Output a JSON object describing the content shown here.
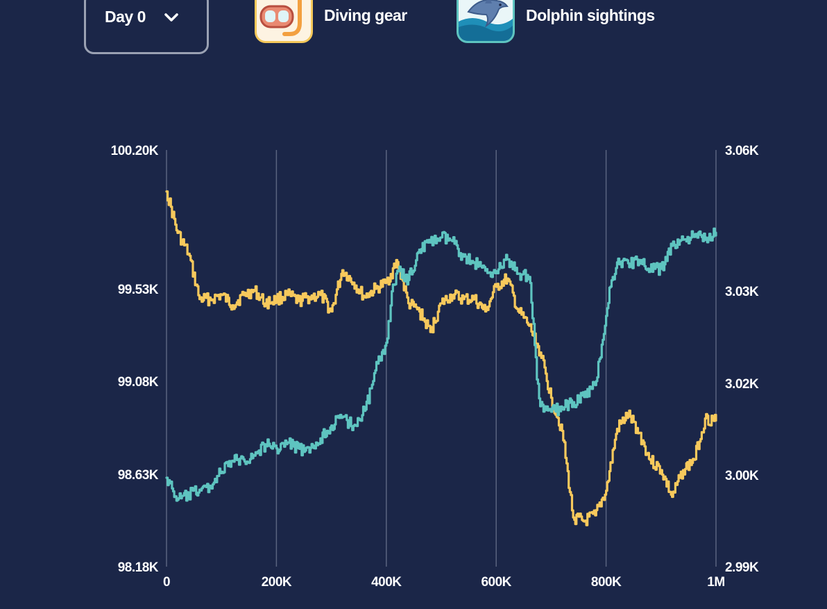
{
  "controls": {
    "day_label": "Day 0",
    "day_icon": "chevron-down-icon"
  },
  "legend": [
    {
      "label": "Diving gear",
      "icon": "snorkel-mask-icon",
      "color": "#f7c95c"
    },
    {
      "label": "Dolphin sightings",
      "icon": "dolphin-icon",
      "color": "#5ec4c0"
    }
  ],
  "chart_data": {
    "type": "line",
    "grid": {
      "vertical": true,
      "horizontal": false
    },
    "x_axis": {
      "range": [
        0,
        1000000
      ],
      "ticks": [
        0,
        200000,
        400000,
        600000,
        800000,
        1000000
      ],
      "tick_labels": [
        "0",
        "200K",
        "400K",
        "600K",
        "800K",
        "1M"
      ]
    },
    "y_left": {
      "range": [
        98180,
        100200
      ],
      "ticks": [
        98180,
        98630,
        99080,
        99530,
        100200
      ],
      "tick_labels": [
        "98.18K",
        "98.63K",
        "99.08K",
        "99.53K",
        "100.20K"
      ]
    },
    "y_right": {
      "range": [
        2990,
        3060
      ],
      "ticks": [
        2990,
        3000,
        3020,
        3030,
        3060
      ],
      "tick_labels": [
        "2.99K",
        "3.00K",
        "3.02K",
        "3.03K",
        "3.06K"
      ]
    },
    "series": [
      {
        "name": "Diving gear",
        "axis": "left",
        "color": "#f7c95c",
        "points": [
          [
            0,
            100000
          ],
          [
            20000,
            99800
          ],
          [
            40000,
            99700
          ],
          [
            60000,
            99480
          ],
          [
            80000,
            99480
          ],
          [
            100000,
            99500
          ],
          [
            120000,
            99450
          ],
          [
            140000,
            99500
          ],
          [
            160000,
            99520
          ],
          [
            180000,
            99460
          ],
          [
            200000,
            99480
          ],
          [
            220000,
            99500
          ],
          [
            240000,
            99470
          ],
          [
            260000,
            99490
          ],
          [
            280000,
            99500
          ],
          [
            300000,
            99420
          ],
          [
            320000,
            99620
          ],
          [
            340000,
            99560
          ],
          [
            360000,
            99490
          ],
          [
            380000,
            99530
          ],
          [
            400000,
            99560
          ],
          [
            420000,
            99660
          ],
          [
            440000,
            99460
          ],
          [
            460000,
            99420
          ],
          [
            480000,
            99320
          ],
          [
            500000,
            99460
          ],
          [
            520000,
            99500
          ],
          [
            540000,
            99480
          ],
          [
            560000,
            99480
          ],
          [
            580000,
            99420
          ],
          [
            600000,
            99540
          ],
          [
            620000,
            99580
          ],
          [
            640000,
            99420
          ],
          [
            660000,
            99350
          ],
          [
            680000,
            99220
          ],
          [
            700000,
            99000
          ],
          [
            720000,
            98840
          ],
          [
            740000,
            98420
          ],
          [
            760000,
            98400
          ],
          [
            780000,
            98430
          ],
          [
            800000,
            98550
          ],
          [
            820000,
            98850
          ],
          [
            840000,
            98920
          ],
          [
            860000,
            98830
          ],
          [
            880000,
            98700
          ],
          [
            900000,
            98650
          ],
          [
            920000,
            98520
          ],
          [
            940000,
            98650
          ],
          [
            960000,
            98700
          ],
          [
            980000,
            98900
          ],
          [
            1000000,
            98890
          ]
        ]
      },
      {
        "name": "Dolphin sightings",
        "axis": "right",
        "color": "#5ec4c0",
        "points": [
          [
            0,
            2999.7
          ],
          [
            20000,
            2997.3
          ],
          [
            40000,
            2997.8
          ],
          [
            60000,
            2998.4
          ],
          [
            80000,
            2998.7
          ],
          [
            100000,
            3000.7
          ],
          [
            120000,
            3003.1
          ],
          [
            140000,
            3003.4
          ],
          [
            160000,
            3004.2
          ],
          [
            180000,
            3006.7
          ],
          [
            200000,
            3005.8
          ],
          [
            220000,
            3007.1
          ],
          [
            240000,
            3005.8
          ],
          [
            260000,
            3004.9
          ],
          [
            280000,
            3008.0
          ],
          [
            300000,
            3010.8
          ],
          [
            320000,
            3012.6
          ],
          [
            340000,
            3010.7
          ],
          [
            360000,
            3014.0
          ],
          [
            380000,
            3021.4
          ],
          [
            400000,
            3024.4
          ],
          [
            420000,
            3034.3
          ],
          [
            440000,
            3032.3
          ],
          [
            460000,
            3038.8
          ],
          [
            480000,
            3040.3
          ],
          [
            500000,
            3041.4
          ],
          [
            520000,
            3040.6
          ],
          [
            540000,
            3037.3
          ],
          [
            560000,
            3036.1
          ],
          [
            580000,
            3034.3
          ],
          [
            600000,
            3034.2
          ],
          [
            620000,
            3036.7
          ],
          [
            640000,
            3033.7
          ],
          [
            660000,
            3033.0
          ],
          [
            680000,
            3015.0
          ],
          [
            700000,
            3013.8
          ],
          [
            720000,
            3014.6
          ],
          [
            740000,
            3015.9
          ],
          [
            760000,
            3017.0
          ],
          [
            780000,
            3019.6
          ],
          [
            800000,
            3027.3
          ],
          [
            820000,
            3036.1
          ],
          [
            840000,
            3035.9
          ],
          [
            860000,
            3036.6
          ],
          [
            880000,
            3034.5
          ],
          [
            900000,
            3034.7
          ],
          [
            920000,
            3039.6
          ],
          [
            940000,
            3040.9
          ],
          [
            960000,
            3041.5
          ],
          [
            980000,
            3041.4
          ],
          [
            1000000,
            3042.4
          ]
        ]
      }
    ]
  }
}
